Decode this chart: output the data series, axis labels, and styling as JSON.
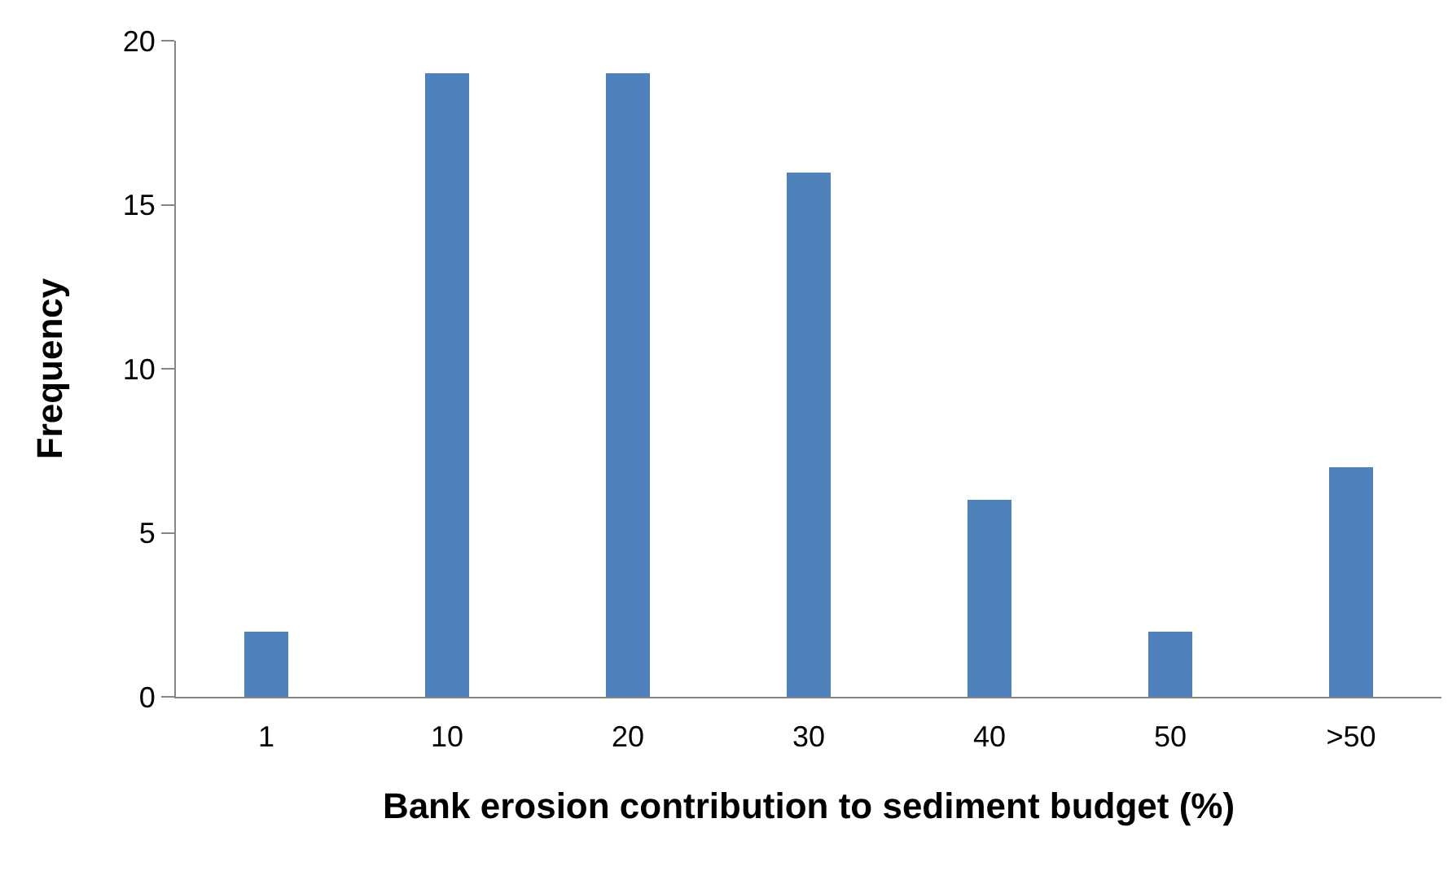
{
  "chart_data": {
    "type": "bar",
    "xlabel": "Bank erosion contribution to sediment budget (%)",
    "ylabel": "Frequency",
    "categories": [
      "1",
      "10",
      "20",
      "30",
      "40",
      "50",
      ">50"
    ],
    "values": [
      2,
      19,
      19,
      16,
      6,
      2,
      7
    ],
    "color": "#4f81bd",
    "ylim": [
      0,
      20
    ],
    "yticks": [
      0,
      5,
      10,
      15,
      20
    ],
    "grid": false
  }
}
